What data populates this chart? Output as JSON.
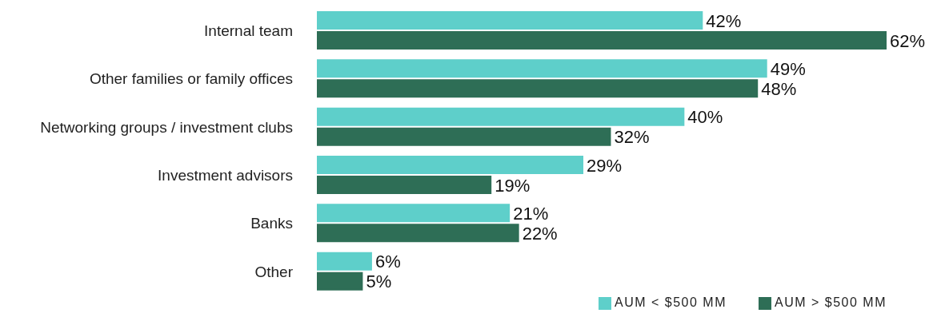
{
  "chart_data": {
    "type": "bar",
    "orientation": "horizontal",
    "categories": [
      "Internal team",
      "Other families or family offices",
      "Networking groups / investment clubs",
      "Investment advisors",
      "Banks",
      "Other"
    ],
    "series": [
      {
        "name": "AUM < $500 MM",
        "color": "#5ecfca",
        "values": [
          42,
          49,
          40,
          29,
          21,
          6
        ],
        "value_labels": [
          "42%",
          "49%",
          "40%",
          "29%",
          "21%",
          "6%"
        ]
      },
      {
        "name": "AUM > $500 MM",
        "color": "#2e6e56",
        "values": [
          62,
          48,
          32,
          19,
          22,
          5
        ],
        "value_labels": [
          "62%",
          "48%",
          "32%",
          "19%",
          "22%",
          "5%"
        ]
      }
    ],
    "legend": "bottom",
    "grid": false
  }
}
